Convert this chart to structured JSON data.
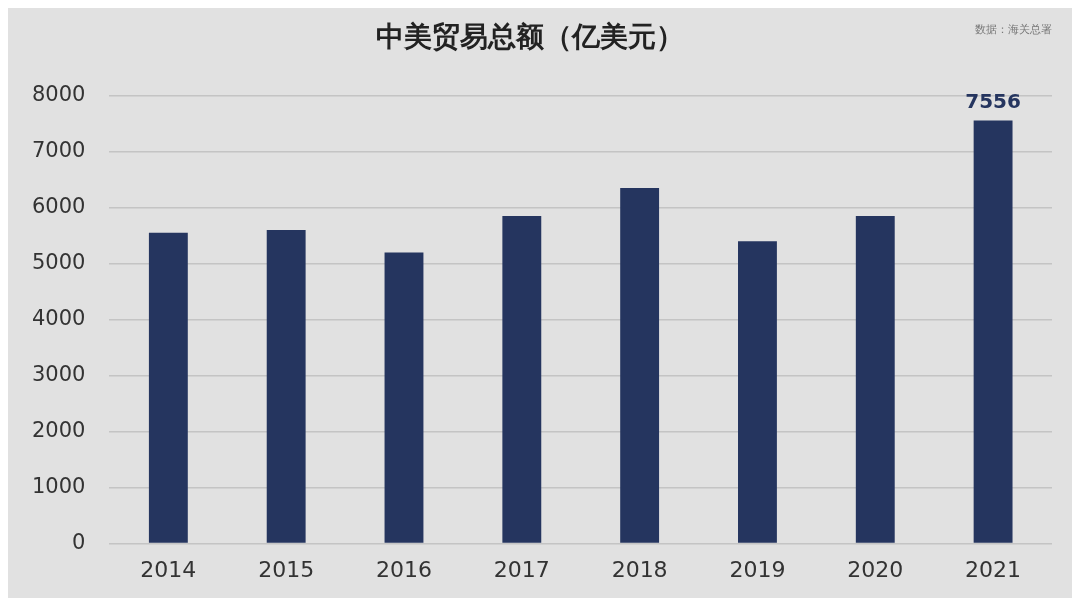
{
  "chart_data": {
    "type": "bar",
    "title": "中美贸易总额（亿美元）",
    "annotations": [
      "数据：海关总署"
    ],
    "categories": [
      "2014",
      "2015",
      "2016",
      "2017",
      "2018",
      "2019",
      "2020",
      "2021"
    ],
    "values": [
      5550,
      5600,
      5200,
      5850,
      6350,
      5400,
      5850,
      7556
    ],
    "value_labels": [
      null,
      null,
      null,
      null,
      null,
      null,
      null,
      "7556"
    ],
    "color": "#25355f",
    "ylim": [
      0,
      8000
    ],
    "yticks": [
      0,
      1000,
      2000,
      3000,
      4000,
      5000,
      6000,
      7000,
      8000
    ],
    "grid": "y",
    "legend": false
  }
}
